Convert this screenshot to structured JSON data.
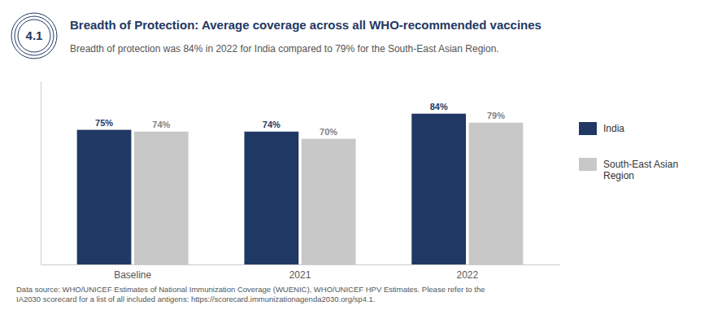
{
  "chart_data": {
    "type": "bar",
    "title": "Breadth of Protection: Average coverage across all WHO-recommended vaccines",
    "subtitle": "Breadth of protection was 84% in 2022 for India compared to 79% for the South-East Asian Region.",
    "annotations": [
      "4.1",
      "Data source: WHO/UNICEF Estimates of National Immunization Coverage (WUENIC), WHO/UNICEF HPV Estimates. Please refer to the",
      "IA2030 scorecard for a list of all included antigens: https://scorecard.immunizationagenda2030.org/sp4.1."
    ],
    "categories": [
      "Baseline",
      "2021",
      "2022"
    ],
    "series": [
      {
        "name": "India",
        "color": "#1F3864",
        "values": [
          75,
          74,
          84
        ],
        "value_labels": [
          "75%",
          "74%",
          "84%"
        ]
      },
      {
        "name": "South-East Asian\nRegion",
        "color": "#C8C8C8",
        "values": [
          74,
          70,
          79
        ],
        "value_labels": [
          "74%",
          "70%",
          "79%"
        ]
      }
    ],
    "ylim": [
      0,
      102
    ],
    "yticks": [],
    "tick_labels": "x",
    "data_labels": true,
    "legend": "right",
    "grid": false
  }
}
